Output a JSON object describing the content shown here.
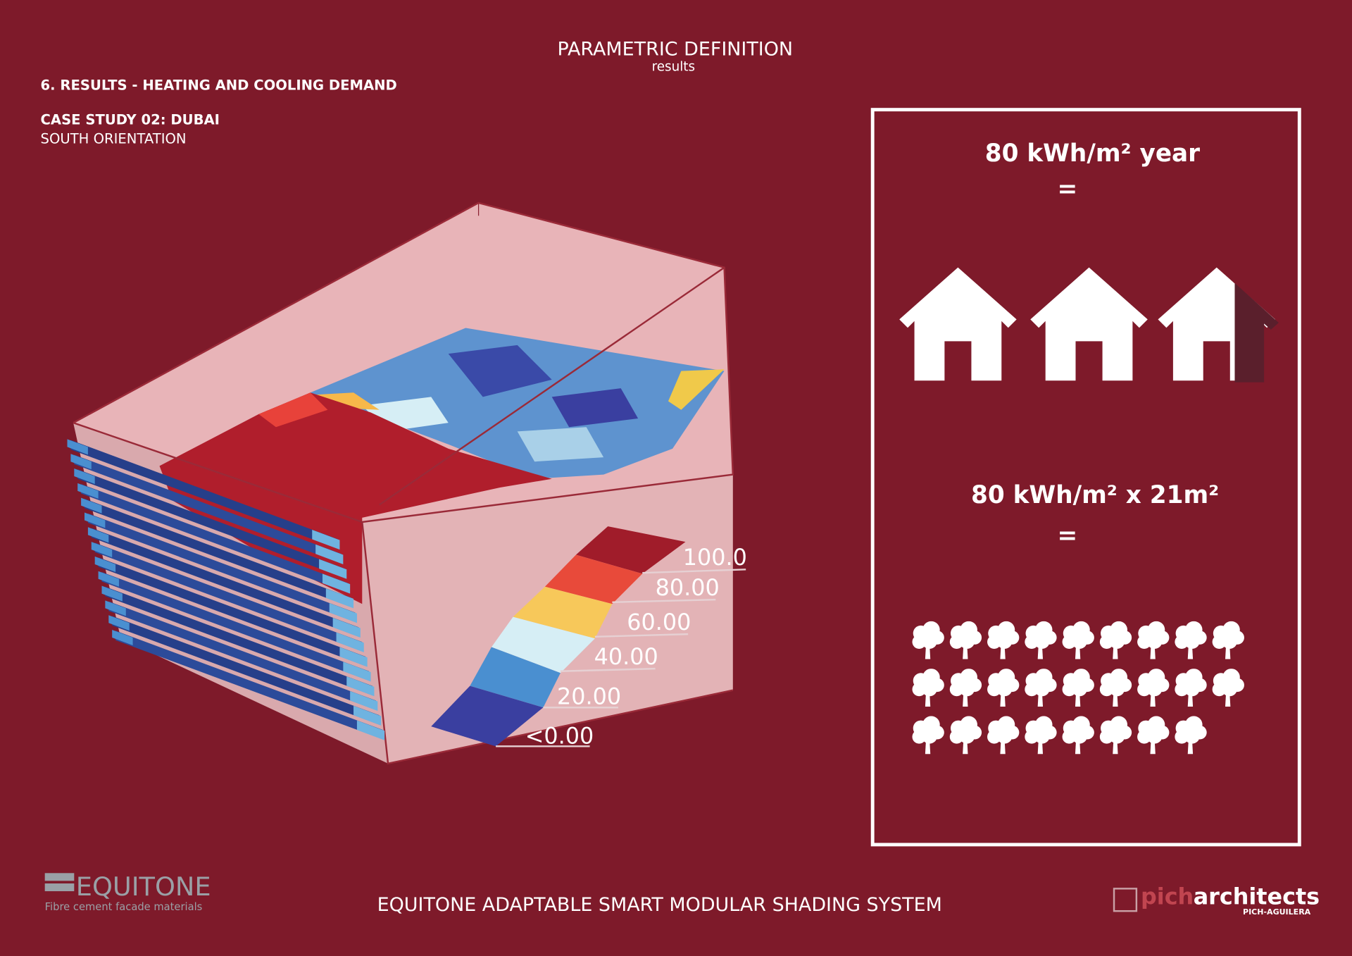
{
  "header": {
    "title": "PARAMETRIC DEFINITION",
    "subtitle": "results"
  },
  "section": {
    "title": "6. RESULTS - HEATING AND COOLING DEMAND",
    "case_study": "CASE STUDY 02: DUBAI",
    "orientation": "SOUTH ORIENTATION"
  },
  "legend": {
    "labels": [
      "100.00",
      "80.00",
      "60.00",
      "40.00",
      "20.00",
      "<0.00"
    ]
  },
  "panel": {
    "energy": "80 kWh/m² year",
    "equals_1": "=",
    "total": "80 kWh/m² x 21m²",
    "equals_2": "="
  },
  "footer": {
    "title": "EQUITONE ADAPTABLE SMART MODULAR SHADING SYSTEM",
    "logo_left": {
      "name": "EQUITONE",
      "tagline": "Fibre cement facade materials"
    },
    "logo_right": {
      "name_light": "pich",
      "name_bold": "architects",
      "tagline": "PICH-AGUILERA"
    }
  }
}
